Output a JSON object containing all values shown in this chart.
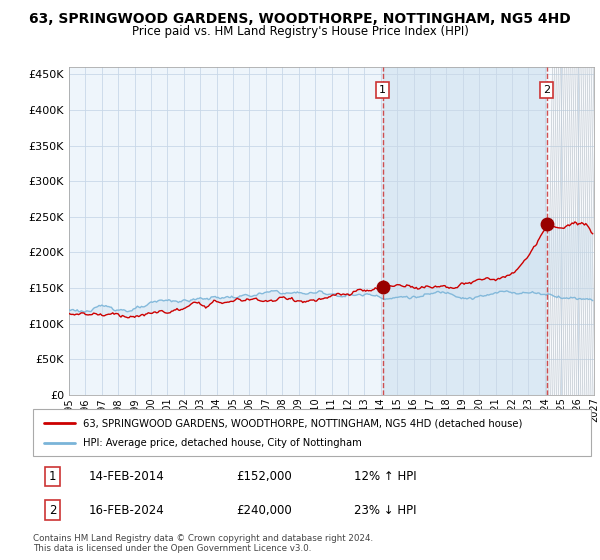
{
  "title": "63, SPRINGWOOD GARDENS, WOODTHORPE, NOTTINGHAM, NG5 4HD",
  "subtitle": "Price paid vs. HM Land Registry's House Price Index (HPI)",
  "legend_line1": "63, SPRINGWOOD GARDENS, WOODTHORPE, NOTTINGHAM, NG5 4HD (detached house)",
  "legend_line2": "HPI: Average price, detached house, City of Nottingham",
  "sale1_date": "14-FEB-2014",
  "sale1_price": "£152,000",
  "sale1_hpi": "12% ↑ HPI",
  "sale2_date": "16-FEB-2024",
  "sale2_price": "£240,000",
  "sale2_hpi": "23% ↓ HPI",
  "footnote": "Contains HM Land Registry data © Crown copyright and database right 2024.\nThis data is licensed under the Open Government Licence v3.0.",
  "hpi_color": "#7ab4d8",
  "sale_color": "#cc0000",
  "hpi_fill": "#d6e8f5",
  "marker_color": "#990000",
  "ylim": [
    0,
    460000
  ],
  "yticks": [
    0,
    50000,
    100000,
    150000,
    200000,
    250000,
    300000,
    350000,
    400000,
    450000
  ],
  "sale1_x": 2014.12,
  "sale1_y": 152000,
  "sale2_x": 2024.12,
  "sale2_y": 240000,
  "shade_start": 2014.12,
  "hatch_start": 2024.12,
  "xmin": 1995.0,
  "xmax": 2027.0
}
